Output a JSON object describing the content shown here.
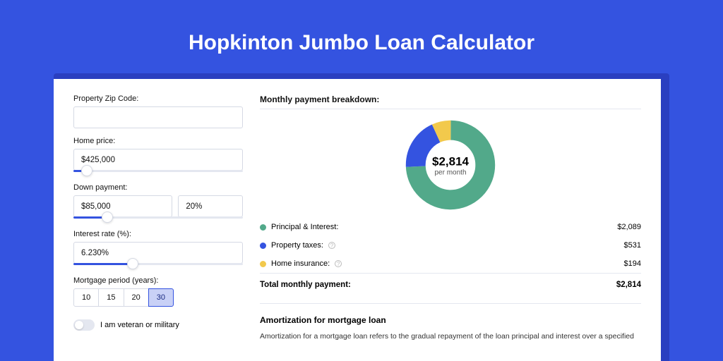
{
  "page": {
    "title": "Hopkinton Jumbo Loan Calculator",
    "background_color": "#3453e0",
    "shadow_color": "#2a3fc0"
  },
  "form": {
    "zip": {
      "label": "Property Zip Code:",
      "value": ""
    },
    "home_price": {
      "label": "Home price:",
      "value": "$425,000",
      "slider_pct": 8
    },
    "down_payment": {
      "label": "Down payment:",
      "value": "$85,000",
      "pct_value": "20%",
      "slider_pct": 20
    },
    "interest": {
      "label": "Interest rate (%):",
      "value": "6.230%",
      "slider_pct": 35
    },
    "period": {
      "label": "Mortgage period (years):",
      "options": [
        "10",
        "15",
        "20",
        "30"
      ],
      "selected": "30"
    },
    "veteran": {
      "label": "I am veteran or military",
      "enabled": false
    }
  },
  "breakdown": {
    "title": "Monthly payment breakdown:",
    "donut": {
      "center_amount": "$2,814",
      "center_sub": "per month",
      "slices": [
        {
          "label": "Principal & Interest:",
          "value": "$2,089",
          "color": "#52a98a",
          "pct": 74.2,
          "has_info": false
        },
        {
          "label": "Property taxes:",
          "value": "$531",
          "color": "#3453e0",
          "pct": 18.9,
          "has_info": true
        },
        {
          "label": "Home insurance:",
          "value": "$194",
          "color": "#f2c94c",
          "pct": 6.9,
          "has_info": true
        }
      ]
    },
    "total": {
      "label": "Total monthly payment:",
      "value": "$2,814"
    }
  },
  "amort": {
    "title": "Amortization for mortgage loan",
    "text": "Amortization for a mortgage loan refers to the gradual repayment of the loan principal and interest over a specified"
  },
  "colors": {
    "border": "#d5d9e4",
    "track": "#e4e7f0",
    "accent": "#3453e0"
  }
}
